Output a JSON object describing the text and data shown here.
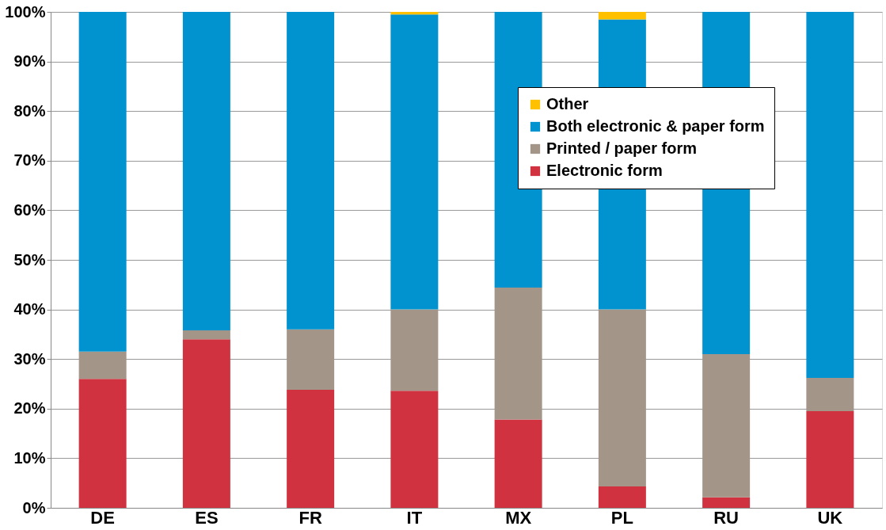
{
  "chart_data": {
    "type": "bar",
    "stacked": true,
    "categories": [
      "DE",
      "ES",
      "FR",
      "IT",
      "MX",
      "PL",
      "RU",
      "UK"
    ],
    "series": [
      {
        "name": "Electronic form",
        "color": "#d0333f",
        "values": [
          26,
          34,
          23.8,
          23.6,
          17.8,
          4.3,
          2.1,
          19.5
        ]
      },
      {
        "name": "Printed / paper form",
        "color": "#a39689",
        "values": [
          5.5,
          1.8,
          12.2,
          16.4,
          26.6,
          35.7,
          28.9,
          6.7
        ]
      },
      {
        "name": "Both electronic & paper form",
        "color": "#0093d0",
        "values": [
          68.5,
          64.2,
          64,
          59.5,
          55.6,
          58.5,
          69,
          73.8
        ]
      },
      {
        "name": "Other",
        "color": "#ffc000",
        "values": [
          0,
          0,
          0,
          0.5,
          0,
          1.5,
          0,
          0
        ]
      }
    ],
    "ylim": [
      0,
      100
    ],
    "yticks": [
      {
        "value": 0,
        "label": "0%"
      },
      {
        "value": 10,
        "label": "10%"
      },
      {
        "value": 20,
        "label": "20%"
      },
      {
        "value": 30,
        "label": "30%"
      },
      {
        "value": 40,
        "label": "40%"
      },
      {
        "value": 50,
        "label": "50%"
      },
      {
        "value": 60,
        "label": "60%"
      },
      {
        "value": 70,
        "label": "70%"
      },
      {
        "value": 80,
        "label": "80%"
      },
      {
        "value": 90,
        "label": "90%"
      },
      {
        "value": 100,
        "label": "100%"
      }
    ],
    "grid": "y",
    "legend": "top right"
  }
}
